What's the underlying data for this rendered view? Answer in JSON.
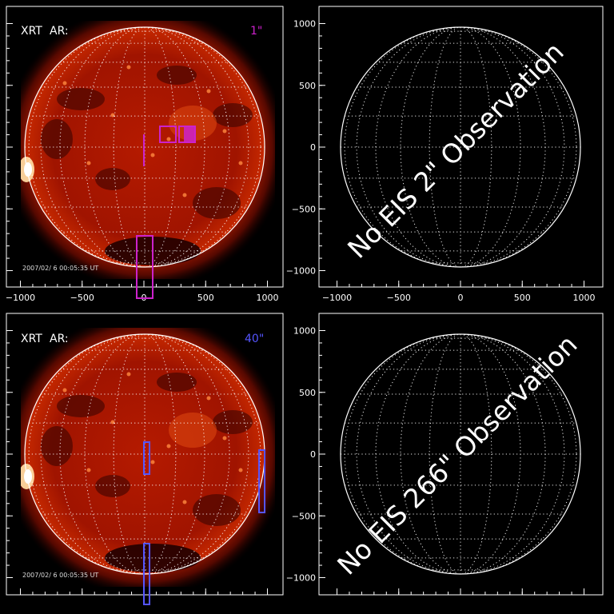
{
  "figure": {
    "background": "#000000",
    "line_color": "#ffffff",
    "magenta": "#cc22cc",
    "blue": "#5555ff",
    "panels": [
      {
        "id": "tl",
        "type": "solar-image",
        "label": "XRT",
        "sublabel": "AR:",
        "annotation": "1\"",
        "annotation_color": "magenta",
        "timestamp": "2007/02/ 6 00:05:35 UT",
        "x_ticks": [
          "−1000",
          "−500",
          "0",
          "500",
          "1000"
        ],
        "y_ticks": []
      },
      {
        "id": "tr",
        "type": "empty-disk",
        "overlay_text": "No EIS 2\" Observation",
        "x_ticks": [
          "−1000",
          "−500",
          "0",
          "500",
          "1000"
        ],
        "y_ticks": [
          "1000",
          "500",
          "0",
          "−500",
          "−1000"
        ]
      },
      {
        "id": "bl",
        "type": "solar-image",
        "label": "XRT",
        "sublabel": "AR:",
        "annotation": "40\"",
        "annotation_color": "blue",
        "timestamp": "2007/02/ 6 00:05:35 UT",
        "x_ticks": [],
        "y_ticks": []
      },
      {
        "id": "br",
        "type": "empty-disk",
        "overlay_text": "No EIS 266\" Observation",
        "x_ticks": [],
        "y_ticks": [
          "1000",
          "500",
          "0",
          "−500",
          "−1000"
        ]
      }
    ]
  }
}
